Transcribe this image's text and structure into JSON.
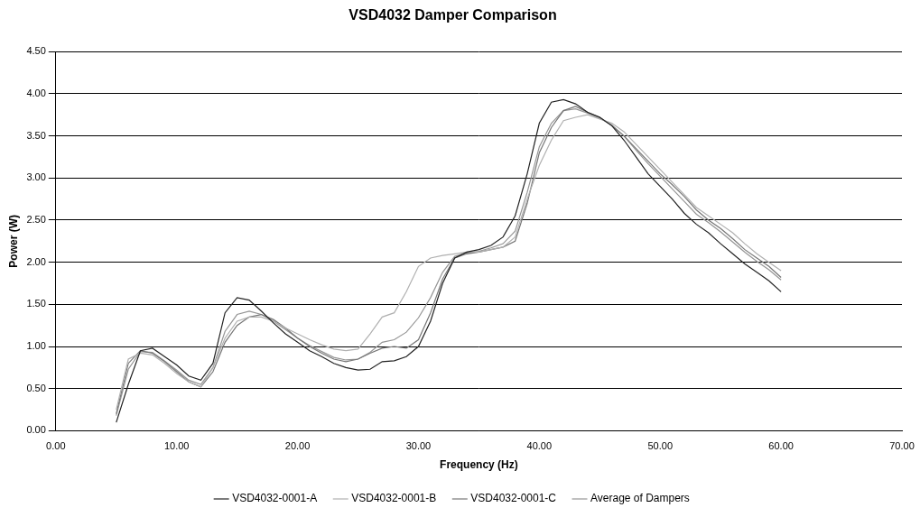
{
  "chart_data": {
    "type": "line",
    "title": "VSD4032 Damper Comparison",
    "x_label": "Frequency (Hz)",
    "y_label": "Power (W)",
    "x": [
      5,
      6,
      7,
      8,
      9,
      10,
      11,
      12,
      13,
      14,
      15,
      16,
      17,
      18,
      19,
      20,
      21,
      22,
      23,
      24,
      25,
      26,
      27,
      28,
      29,
      30,
      31,
      32,
      33,
      34,
      35,
      36,
      37,
      38,
      39,
      40,
      41,
      42,
      43,
      44,
      45,
      46,
      47,
      48,
      49,
      50,
      51,
      52,
      53,
      54,
      55,
      56,
      57,
      58,
      59,
      60
    ],
    "series": [
      {
        "name": "VSD4032-0001-A",
        "color": "#222222",
        "values": [
          0.1,
          0.55,
          0.95,
          0.98,
          0.88,
          0.78,
          0.65,
          0.6,
          0.8,
          1.4,
          1.58,
          1.55,
          1.42,
          1.28,
          1.15,
          1.05,
          0.95,
          0.88,
          0.8,
          0.75,
          0.72,
          0.73,
          0.82,
          0.83,
          0.88,
          1.0,
          1.3,
          1.75,
          2.05,
          2.12,
          2.15,
          2.2,
          2.3,
          2.55,
          3.05,
          3.65,
          3.9,
          3.93,
          3.88,
          3.78,
          3.72,
          3.62,
          3.45,
          3.25,
          3.05,
          2.9,
          2.75,
          2.58,
          2.45,
          2.35,
          2.22,
          2.1,
          1.98,
          1.88,
          1.78,
          1.65
        ]
      },
      {
        "name": "VSD4032-0001-B",
        "color": "#b0b0b0",
        "values": [
          0.25,
          0.85,
          0.92,
          0.9,
          0.8,
          0.68,
          0.58,
          0.52,
          0.75,
          1.1,
          1.3,
          1.35,
          1.35,
          1.3,
          1.22,
          1.15,
          1.08,
          1.02,
          0.97,
          0.95,
          0.97,
          1.15,
          1.35,
          1.4,
          1.65,
          1.95,
          2.05,
          2.08,
          2.1,
          2.12,
          2.12,
          2.15,
          2.18,
          2.3,
          2.75,
          3.15,
          3.45,
          3.68,
          3.72,
          3.75,
          3.7,
          3.65,
          3.55,
          3.4,
          3.25,
          3.1,
          2.95,
          2.8,
          2.65,
          2.55,
          2.45,
          2.35,
          2.22,
          2.1,
          2.0,
          1.9
        ]
      },
      {
        "name": "VSD4032-0001-C",
        "color": "#777777",
        "values": [
          0.2,
          0.8,
          0.95,
          0.92,
          0.82,
          0.7,
          0.58,
          0.52,
          0.7,
          1.05,
          1.25,
          1.35,
          1.38,
          1.32,
          1.22,
          1.1,
          1.0,
          0.92,
          0.85,
          0.82,
          0.85,
          0.92,
          0.98,
          1.0,
          0.98,
          1.08,
          1.4,
          1.8,
          2.05,
          2.1,
          2.12,
          2.15,
          2.18,
          2.25,
          2.7,
          3.3,
          3.6,
          3.8,
          3.85,
          3.78,
          3.72,
          3.62,
          3.5,
          3.35,
          3.2,
          3.05,
          2.92,
          2.78,
          2.62,
          2.5,
          2.4,
          2.28,
          2.15,
          2.05,
          1.95,
          1.82
        ]
      },
      {
        "name": "Average of Dampers",
        "color": "#959595",
        "values": [
          0.18,
          0.73,
          0.94,
          0.93,
          0.83,
          0.72,
          0.6,
          0.55,
          0.75,
          1.18,
          1.38,
          1.42,
          1.38,
          1.3,
          1.2,
          1.1,
          1.01,
          0.94,
          0.87,
          0.84,
          0.85,
          0.93,
          1.05,
          1.08,
          1.17,
          1.34,
          1.58,
          1.88,
          2.07,
          2.11,
          2.13,
          2.17,
          2.22,
          2.37,
          2.83,
          3.37,
          3.65,
          3.8,
          3.82,
          3.77,
          3.71,
          3.63,
          3.5,
          3.33,
          3.17,
          3.02,
          2.87,
          2.72,
          2.57,
          2.47,
          2.36,
          2.24,
          2.12,
          2.01,
          1.91,
          1.79
        ]
      }
    ],
    "xlim": [
      0,
      70
    ],
    "xticks": [
      {
        "value": 0,
        "label": "0.00"
      },
      {
        "value": 10,
        "label": "10.00"
      },
      {
        "value": 20,
        "label": "20.00"
      },
      {
        "value": 30,
        "label": "30.00"
      },
      {
        "value": 40,
        "label": "40.00"
      },
      {
        "value": 50,
        "label": "50.00"
      },
      {
        "value": 60,
        "label": "60.00"
      },
      {
        "value": 70,
        "label": "70.00"
      }
    ],
    "ylim": [
      0,
      4.5
    ],
    "yticks": [
      {
        "value": 0,
        "label": "0.00"
      },
      {
        "value": 0.5,
        "label": "0.50"
      },
      {
        "value": 1,
        "label": "1.00"
      },
      {
        "value": 1.5,
        "label": "1.50"
      },
      {
        "value": 2,
        "label": "2.00"
      },
      {
        "value": 2.5,
        "label": "2.50"
      },
      {
        "value": 3,
        "label": "3.00"
      },
      {
        "value": 3.5,
        "label": "3.50"
      },
      {
        "value": 4,
        "label": "4.00"
      },
      {
        "value": 4.5,
        "label": "4.50"
      }
    ],
    "grid": "y",
    "legend": "bottom"
  }
}
